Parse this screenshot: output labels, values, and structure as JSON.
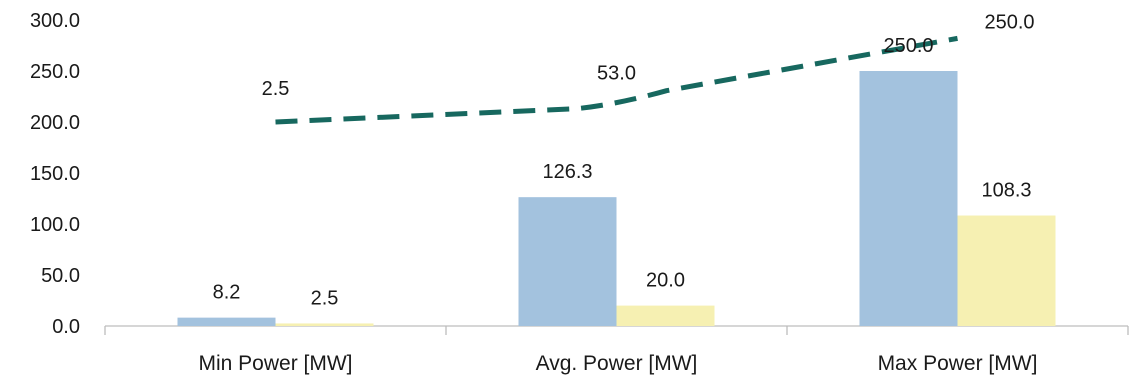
{
  "chart_data": {
    "type": "bar",
    "title": "",
    "xlabel": "",
    "ylabel": "",
    "ylim": [
      0,
      300
    ],
    "yticks": [
      "0.0",
      "50.0",
      "100.0",
      "150.0",
      "200.0",
      "250.0",
      "300.0"
    ],
    "categories": [
      "Min Power [MW]",
      "Avg. Power [MW]",
      "Max Power [MW]"
    ],
    "series": [
      {
        "type": "bar",
        "color": "#a3c2de",
        "values": [
          8.2,
          126.3,
          250.0
        ],
        "labels": [
          "8.2",
          "126.3",
          "250.0"
        ]
      },
      {
        "type": "bar",
        "color": "#f6f0b2",
        "values": [
          2.5,
          20.0,
          108.3
        ],
        "labels": [
          "2.5",
          "20.0",
          "108.3"
        ]
      },
      {
        "type": "line",
        "style": "dashed",
        "color": "#17685f",
        "values": [
          200,
          217,
          282
        ],
        "labels": [
          "2.5",
          "53.0",
          "250.0"
        ]
      }
    ],
    "grid": false,
    "legend": "none"
  }
}
